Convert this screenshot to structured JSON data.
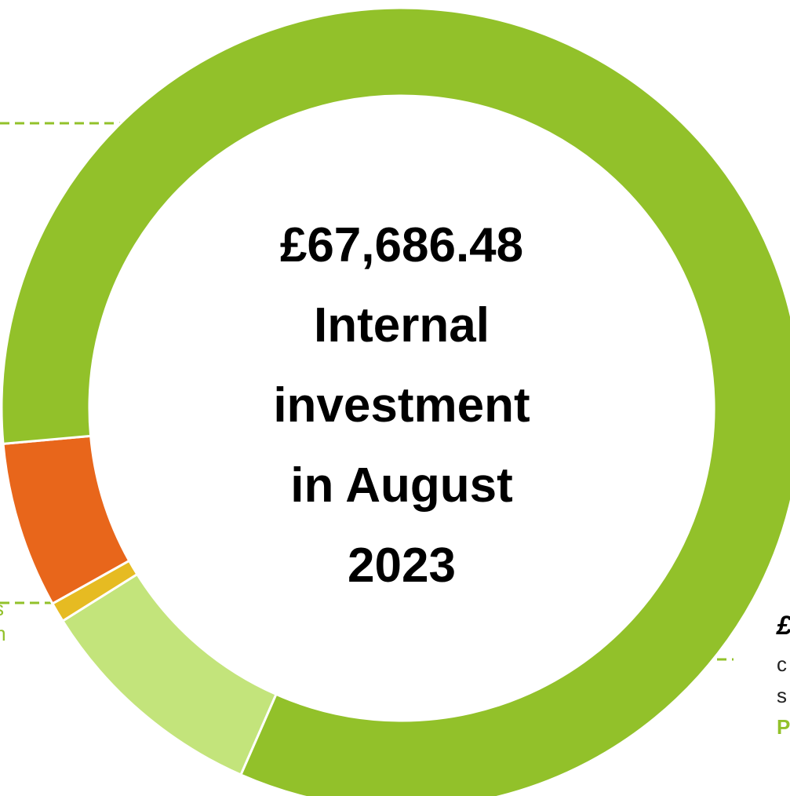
{
  "chart_data": {
    "type": "donut",
    "center_text": [
      "£67,686.48",
      "Internal",
      "investment",
      "in August",
      "2023"
    ],
    "categories": [
      null,
      null,
      null,
      null
    ],
    "values": [
      9.5,
      0.8,
      6.7,
      83
    ],
    "colors": [
      "#c3e47b",
      "#e6bb22",
      "#e8661b",
      "#92c12a"
    ],
    "annotations": [
      "£",
      "c",
      "s",
      "P",
      "s",
      "m"
    ]
  }
}
